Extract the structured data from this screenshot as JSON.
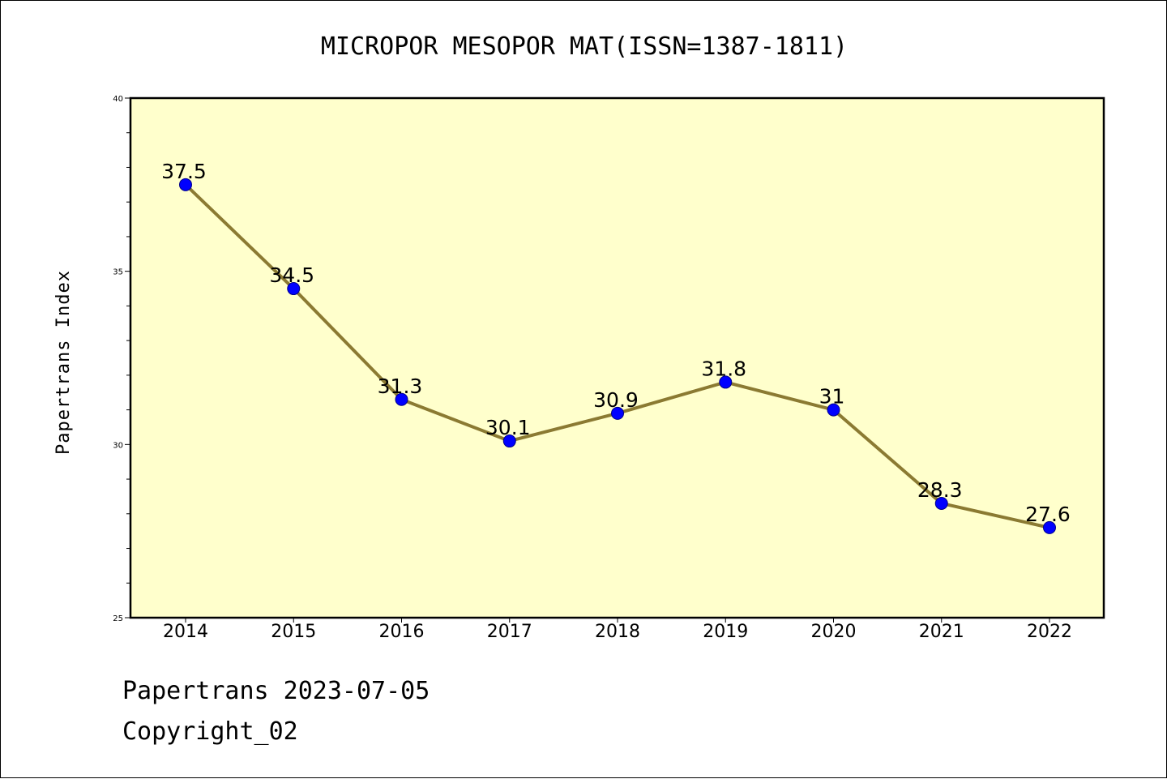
{
  "footer": {
    "line1": "Papertrans 2023-07-05",
    "line2": "Copyright_02"
  },
  "colors": {
    "plot_background": "#ffffcc",
    "line": "#8b7a32",
    "marker_fill": "#0000ff",
    "marker_edge": "#00008b"
  },
  "chart_data": {
    "type": "line",
    "title": "MICROPOR MESOPOR MAT(ISSN=1387-1811)",
    "xlabel": "",
    "ylabel": "Papertrans Index",
    "categories": [
      "2014",
      "2015",
      "2016",
      "2017",
      "2018",
      "2019",
      "2020",
      "2021",
      "2022"
    ],
    "series": [
      {
        "values": [
          37.5,
          34.5,
          31.3,
          30.1,
          30.9,
          31.8,
          31,
          28.3,
          27.6
        ],
        "labels": [
          "37.5",
          "34.5",
          "31.3",
          "30.1",
          "30.9",
          "31.8",
          "31",
          "28.3",
          "27.6"
        ]
      }
    ],
    "ylim": [
      25,
      40
    ],
    "yticks": [
      "25",
      "30",
      "35",
      "40"
    ],
    "grid": false,
    "legend": "none"
  }
}
